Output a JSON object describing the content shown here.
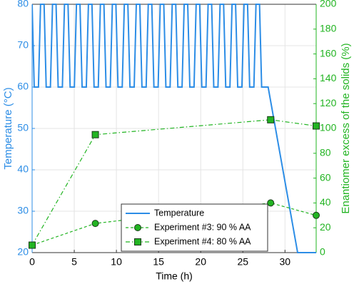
{
  "chart_data": {
    "type": "line",
    "xlabel": "Time (h)",
    "ylabel": "Temperature (°C)",
    "y2label": "Enantiomer excess of the solids (%)",
    "xlim": [
      0,
      33.7
    ],
    "xticks": [
      0,
      5,
      10,
      15,
      20,
      25,
      30
    ],
    "ylim": [
      20,
      80
    ],
    "yticks": [
      20,
      30,
      40,
      50,
      60,
      70,
      80
    ],
    "y2lim": [
      0,
      200
    ],
    "y2ticks": [
      0,
      20,
      40,
      60,
      80,
      100,
      120,
      140,
      160,
      180,
      200
    ],
    "grid": true,
    "legend": "lower center",
    "series": [
      {
        "name": "Temperature",
        "color": "#2c8de6",
        "axis": "y",
        "style": "solid",
        "x": [
          0,
          0.25,
          0.75,
          1.0,
          1.42,
          1.67,
          2.17,
          2.42,
          2.84,
          3.09,
          3.59,
          3.84,
          4.26,
          4.51,
          5.01,
          5.26,
          5.68,
          5.93,
          6.43,
          6.68,
          7.1,
          7.35,
          7.85,
          8.1,
          8.52,
          8.77,
          9.27,
          9.52,
          9.94,
          10.19,
          10.69,
          10.94,
          11.36,
          11.61,
          12.11,
          12.36,
          12.78,
          13.03,
          13.53,
          13.78,
          14.2,
          14.45,
          14.95,
          15.2,
          15.62,
          15.87,
          16.37,
          16.62,
          17.04,
          17.29,
          17.79,
          18.04,
          18.46,
          18.71,
          19.21,
          19.46,
          19.88,
          20.13,
          20.63,
          20.88,
          21.3,
          21.55,
          22.05,
          22.3,
          22.72,
          22.97,
          23.47,
          23.72,
          24.14,
          24.39,
          24.89,
          25.14,
          25.56,
          25.81,
          26.31,
          26.56,
          26.98,
          27.23,
          28.0,
          31.5,
          33.7
        ],
        "values": [
          80,
          60,
          60,
          80,
          80,
          60,
          60,
          80,
          80,
          60,
          60,
          80,
          80,
          60,
          60,
          80,
          80,
          60,
          60,
          80,
          80,
          60,
          60,
          80,
          80,
          60,
          60,
          80,
          80,
          60,
          60,
          80,
          80,
          60,
          60,
          80,
          80,
          60,
          60,
          80,
          80,
          60,
          60,
          80,
          80,
          60,
          60,
          80,
          80,
          60,
          60,
          80,
          80,
          60,
          60,
          80,
          80,
          60,
          60,
          80,
          80,
          60,
          60,
          80,
          80,
          60,
          60,
          80,
          80,
          60,
          60,
          80,
          80,
          60,
          60,
          80,
          80,
          60,
          60,
          20,
          20
        ]
      },
      {
        "name": "Experiment #3: 90 % AA",
        "color": "#22b422",
        "axis": "y2",
        "style": "dashed",
        "marker": "circle",
        "x": [
          0,
          7.5,
          28.3,
          33.7
        ],
        "values": [
          6,
          23.5,
          40,
          30
        ]
      },
      {
        "name": "Experiment #4: 80 % AA",
        "color": "#22b422",
        "axis": "y2",
        "style": "dashdot",
        "marker": "square",
        "x": [
          0,
          7.5,
          28.3,
          33.7
        ],
        "values": [
          6,
          95,
          107,
          102
        ]
      }
    ]
  }
}
